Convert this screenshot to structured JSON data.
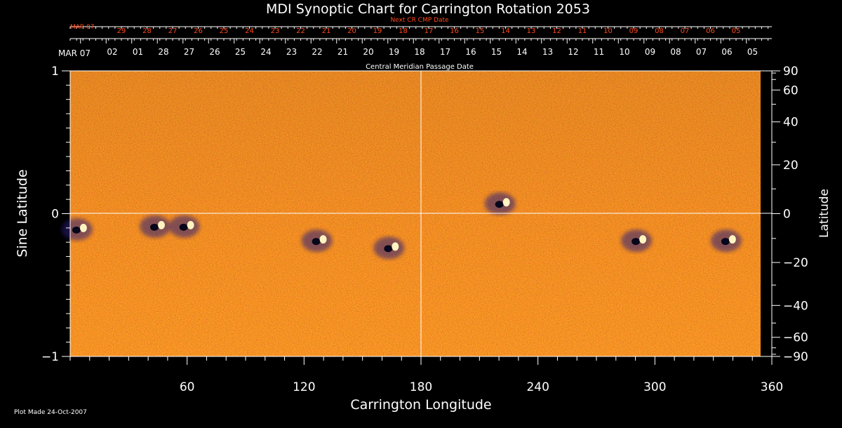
{
  "chart_data": {
    "type": "heatmap",
    "title": "MDI Synoptic Chart for Carrington Rotation 2053",
    "xlabel": "Carrington Longitude",
    "ylabel_left": "Sine Latitude",
    "ylabel_right": "Latitude",
    "xlim": [
      0,
      360
    ],
    "ylim": [
      -1,
      1
    ],
    "x_ticks": [
      60,
      120,
      180,
      240,
      300,
      360
    ],
    "y_left_ticks": [
      -1,
      0,
      1
    ],
    "y_right_ticks": [
      90,
      60,
      40,
      20,
      0,
      -20,
      -40,
      -60,
      -90
    ],
    "cmp_axis": {
      "label": "Central Meridian Passage Date",
      "start_label": "MAR 07",
      "labels": [
        "02",
        "01",
        "28",
        "27",
        "26",
        "25",
        "24",
        "23",
        "22",
        "21",
        "20",
        "19",
        "18",
        "17",
        "16",
        "15",
        "14",
        "13",
        "12",
        "11",
        "10",
        "09",
        "08",
        "07",
        "06",
        "05"
      ]
    },
    "next_cr_axis": {
      "label": "Next CR CMP Date",
      "start_label": "MAR 07",
      "labels": [
        "29",
        "28",
        "27",
        "26",
        "25",
        "24",
        "23",
        "22",
        "21",
        "20",
        "19",
        "18",
        "17",
        "16",
        "15",
        "14",
        "13",
        "12",
        "11",
        "10",
        "09",
        "08",
        "07",
        "06",
        "05"
      ]
    },
    "active_regions": [
      {
        "lon": 5,
        "sinlat": -0.11
      },
      {
        "lon": 45,
        "sinlat": -0.09
      },
      {
        "lon": 60,
        "sinlat": -0.09
      },
      {
        "lon": 128,
        "sinlat": -0.19
      },
      {
        "lon": 165,
        "sinlat": -0.24
      },
      {
        "lon": 222,
        "sinlat": 0.07
      },
      {
        "lon": 292,
        "sinlat": -0.19
      },
      {
        "lon": 338,
        "sinlat": -0.19
      }
    ],
    "colors": {
      "field": "#e4531c",
      "negative": "#2a1a78",
      "positive": "#fff4c0",
      "axis": "#ffffff",
      "secondary_axis": "#ff4a1a"
    }
  },
  "footer": "Plot Made 24-Oct-2007"
}
